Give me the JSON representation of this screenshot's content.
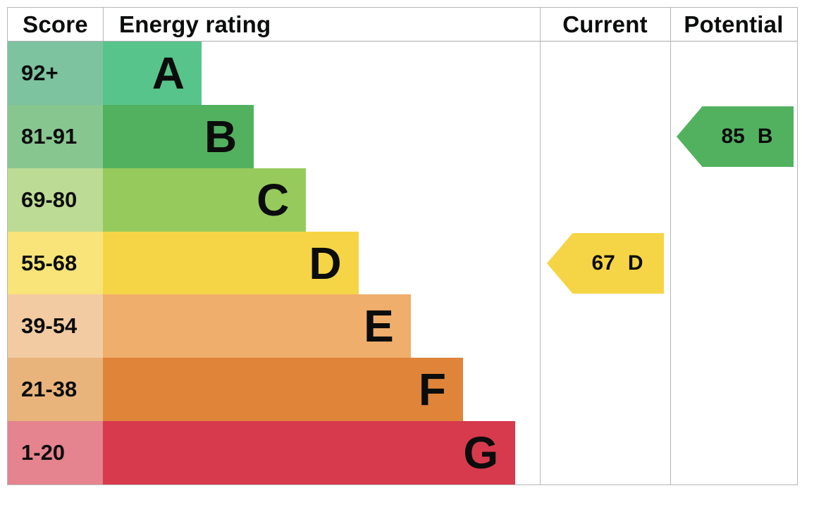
{
  "header": {
    "score": "Score",
    "energy_rating": "Energy rating",
    "current": "Current",
    "potential": "Potential"
  },
  "chart_data": {
    "type": "bar",
    "title": "EPC energy efficiency rating chart",
    "categories": [
      "A",
      "B",
      "C",
      "D",
      "E",
      "F",
      "G"
    ],
    "bands": [
      {
        "letter": "A",
        "score_range": "92+",
        "bar_color": "#57c48b",
        "score_cell_color": "#7dc3a0"
      },
      {
        "letter": "B",
        "score_range": "81-91",
        "bar_color": "#52b15f",
        "score_cell_color": "#88c690"
      },
      {
        "letter": "C",
        "score_range": "69-80",
        "bar_color": "#97ca5c",
        "score_cell_color": "#bcdb94"
      },
      {
        "letter": "D",
        "score_range": "55-68",
        "bar_color": "#f5d545",
        "score_cell_color": "#f8e478"
      },
      {
        "letter": "E",
        "score_range": "39-54",
        "bar_color": "#f0ae6c",
        "score_cell_color": "#f2cba3"
      },
      {
        "letter": "F",
        "score_range": "21-38",
        "bar_color": "#e0843a",
        "score_cell_color": "#e9b47c"
      },
      {
        "letter": "G",
        "score_range": "1-20",
        "bar_color": "#d63a4c",
        "score_cell_color": "#e5838f"
      }
    ],
    "current": {
      "value": "67",
      "band": "D",
      "band_index": 3,
      "color": "#f5d545"
    },
    "potential": {
      "value": "85",
      "band": "B",
      "band_index": 1,
      "color": "#52b15f"
    },
    "border_color": "#b4b7b9",
    "text_color": "#0b0c0c"
  }
}
